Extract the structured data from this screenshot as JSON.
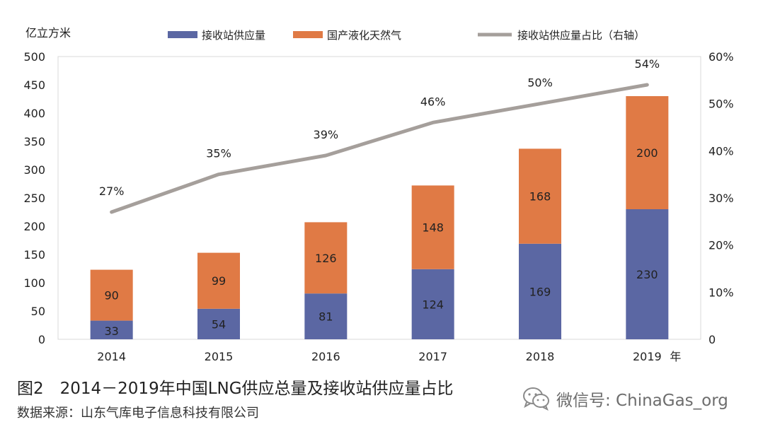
{
  "chart_data": {
    "type": "bar+line",
    "categories": [
      "2014",
      "2015",
      "2016",
      "2017",
      "2018",
      "2019"
    ],
    "series": [
      {
        "name": "接收站供应量",
        "type": "stacked-bar",
        "color": "#5b67a3",
        "values": [
          33,
          54,
          81,
          124,
          169,
          230
        ]
      },
      {
        "name": "国产液化天然气",
        "type": "stacked-bar",
        "color": "#e07a45",
        "values": [
          90,
          99,
          126,
          148,
          168,
          200
        ]
      },
      {
        "name": "接收站供应量占比（右轴）",
        "type": "line",
        "axis": "right",
        "color": "#a59f9b",
        "values": [
          27,
          35,
          39,
          46,
          50,
          54
        ]
      }
    ],
    "line_labels": [
      "27%",
      "35%",
      "39%",
      "46%",
      "50%",
      "54%"
    ],
    "y_left": {
      "label": "亿立方米",
      "range": [
        0,
        500
      ],
      "ticks": [
        "0",
        "50",
        "100",
        "150",
        "200",
        "250",
        "300",
        "350",
        "400",
        "450",
        "500"
      ]
    },
    "y_right": {
      "range": [
        0,
        60
      ],
      "ticks": [
        "0",
        "10%",
        "20%",
        "30%",
        "40%",
        "50%",
        "60%"
      ]
    },
    "x_unit": "年",
    "legend_position": "top"
  },
  "caption": "图2　2014－2019年中国LNG供应总量及接收站供应量占比",
  "source": "数据来源：山东气库电子信息科技有限公司",
  "watermark": {
    "label": "微信号: ChinaGas_org",
    "icon": "wechat-icon"
  }
}
